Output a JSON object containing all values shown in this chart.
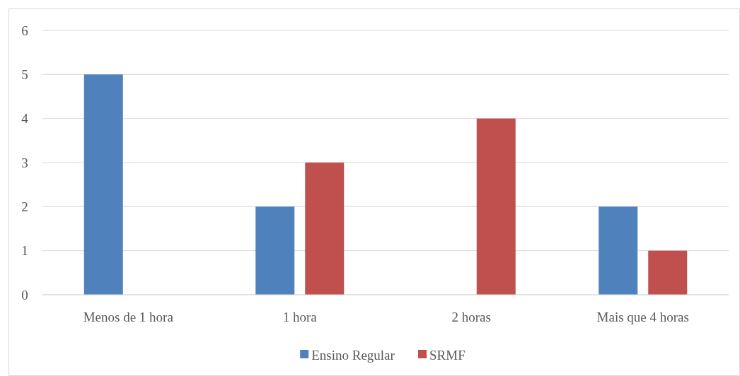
{
  "chart_data": {
    "type": "bar",
    "categories": [
      "Menos de 1 hora",
      "1 hora",
      "2 horas",
      "Mais que 4 horas"
    ],
    "series": [
      {
        "name": "Ensino Regular",
        "color": "#4f81bd",
        "values": [
          5,
          2,
          0,
          2
        ]
      },
      {
        "name": "SRMF",
        "color": "#c0504d",
        "values": [
          0,
          3,
          4,
          1
        ]
      }
    ],
    "ylim": [
      0,
      6
    ],
    "yticks": [
      0,
      1,
      2,
      3,
      4,
      5,
      6
    ],
    "grid": "y",
    "legend": "bottom"
  }
}
